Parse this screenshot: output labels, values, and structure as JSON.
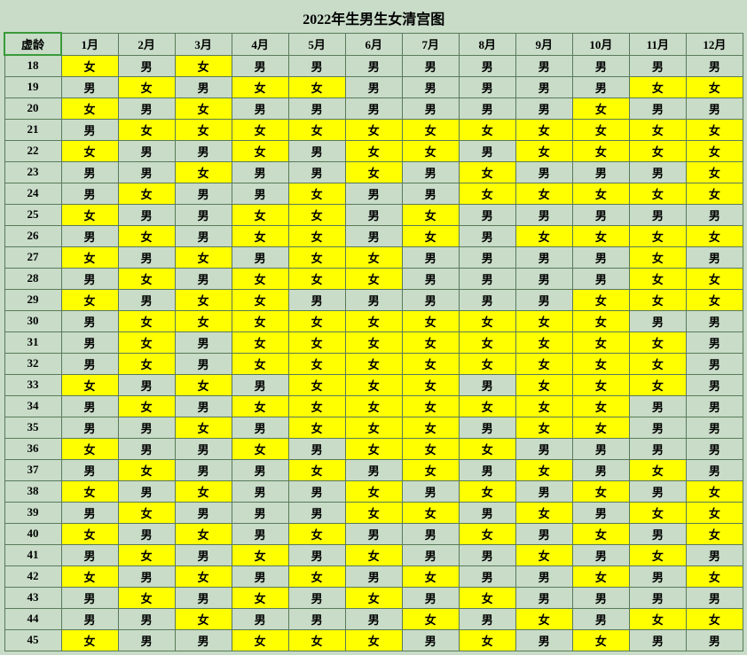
{
  "title": "2022年生男生女清宫图",
  "ageHeader": "虚龄",
  "months": [
    "1月",
    "2月",
    "3月",
    "4月",
    "5月",
    "6月",
    "7月",
    "8月",
    "9月",
    "10月",
    "11月",
    "12月"
  ],
  "labels": {
    "f": "女",
    "m": "男"
  },
  "colors": {
    "background": "#c8dcc8",
    "female": "#ffff00",
    "male": "#c8dcc8",
    "border": "#5a7a5a",
    "selectedBorder": "#3a9a3a"
  },
  "rows": [
    {
      "age": 18,
      "v": [
        "f",
        "m",
        "f",
        "m",
        "m",
        "m",
        "m",
        "m",
        "m",
        "m",
        "m",
        "m"
      ]
    },
    {
      "age": 19,
      "v": [
        "m",
        "f",
        "m",
        "f",
        "f",
        "m",
        "m",
        "m",
        "m",
        "m",
        "f",
        "f"
      ]
    },
    {
      "age": 20,
      "v": [
        "f",
        "m",
        "f",
        "m",
        "m",
        "m",
        "m",
        "m",
        "m",
        "f",
        "m",
        "m"
      ]
    },
    {
      "age": 21,
      "v": [
        "m",
        "f",
        "f",
        "f",
        "f",
        "f",
        "f",
        "f",
        "f",
        "f",
        "f",
        "f"
      ]
    },
    {
      "age": 22,
      "v": [
        "f",
        "m",
        "m",
        "f",
        "m",
        "f",
        "f",
        "m",
        "f",
        "f",
        "f",
        "f"
      ]
    },
    {
      "age": 23,
      "v": [
        "m",
        "m",
        "f",
        "m",
        "m",
        "f",
        "m",
        "f",
        "m",
        "m",
        "m",
        "f"
      ]
    },
    {
      "age": 24,
      "v": [
        "m",
        "f",
        "m",
        "m",
        "f",
        "m",
        "m",
        "f",
        "f",
        "f",
        "f",
        "f"
      ]
    },
    {
      "age": 25,
      "v": [
        "f",
        "m",
        "m",
        "f",
        "f",
        "m",
        "f",
        "m",
        "m",
        "m",
        "m",
        "m"
      ]
    },
    {
      "age": 26,
      "v": [
        "m",
        "f",
        "m",
        "f",
        "f",
        "m",
        "f",
        "m",
        "f",
        "f",
        "f",
        "f"
      ]
    },
    {
      "age": 27,
      "v": [
        "f",
        "m",
        "f",
        "m",
        "f",
        "f",
        "m",
        "m",
        "m",
        "m",
        "f",
        "m"
      ]
    },
    {
      "age": 28,
      "v": [
        "m",
        "f",
        "m",
        "f",
        "f",
        "f",
        "m",
        "m",
        "m",
        "m",
        "f",
        "f"
      ]
    },
    {
      "age": 29,
      "v": [
        "f",
        "m",
        "f",
        "f",
        "m",
        "m",
        "m",
        "m",
        "m",
        "f",
        "f",
        "f"
      ]
    },
    {
      "age": 30,
      "v": [
        "m",
        "f",
        "f",
        "f",
        "f",
        "f",
        "f",
        "f",
        "f",
        "f",
        "m",
        "m"
      ]
    },
    {
      "age": 31,
      "v": [
        "m",
        "f",
        "m",
        "f",
        "f",
        "f",
        "f",
        "f",
        "f",
        "f",
        "f",
        "m"
      ]
    },
    {
      "age": 32,
      "v": [
        "m",
        "f",
        "m",
        "f",
        "f",
        "f",
        "f",
        "f",
        "f",
        "f",
        "f",
        "m"
      ]
    },
    {
      "age": 33,
      "v": [
        "f",
        "m",
        "f",
        "m",
        "f",
        "f",
        "f",
        "m",
        "f",
        "f",
        "f",
        "m"
      ]
    },
    {
      "age": 34,
      "v": [
        "m",
        "f",
        "m",
        "f",
        "f",
        "f",
        "f",
        "f",
        "f",
        "f",
        "m",
        "m"
      ]
    },
    {
      "age": 35,
      "v": [
        "m",
        "m",
        "f",
        "m",
        "f",
        "f",
        "f",
        "m",
        "f",
        "f",
        "m",
        "m"
      ]
    },
    {
      "age": 36,
      "v": [
        "f",
        "m",
        "m",
        "f",
        "m",
        "f",
        "f",
        "f",
        "m",
        "m",
        "m",
        "m"
      ]
    },
    {
      "age": 37,
      "v": [
        "m",
        "f",
        "m",
        "m",
        "f",
        "m",
        "f",
        "m",
        "f",
        "m",
        "f",
        "m"
      ]
    },
    {
      "age": 38,
      "v": [
        "f",
        "m",
        "f",
        "m",
        "m",
        "f",
        "m",
        "f",
        "m",
        "f",
        "m",
        "f"
      ]
    },
    {
      "age": 39,
      "v": [
        "m",
        "f",
        "m",
        "m",
        "m",
        "f",
        "f",
        "m",
        "f",
        "m",
        "f",
        "f"
      ]
    },
    {
      "age": 40,
      "v": [
        "f",
        "m",
        "f",
        "m",
        "f",
        "m",
        "m",
        "f",
        "m",
        "f",
        "m",
        "f"
      ]
    },
    {
      "age": 41,
      "v": [
        "m",
        "f",
        "m",
        "f",
        "m",
        "f",
        "m",
        "m",
        "f",
        "m",
        "f",
        "m"
      ]
    },
    {
      "age": 42,
      "v": [
        "f",
        "m",
        "f",
        "m",
        "f",
        "m",
        "f",
        "m",
        "m",
        "f",
        "m",
        "f"
      ]
    },
    {
      "age": 43,
      "v": [
        "m",
        "f",
        "m",
        "f",
        "m",
        "f",
        "m",
        "f",
        "m",
        "m",
        "m",
        "m"
      ]
    },
    {
      "age": 44,
      "v": [
        "m",
        "m",
        "f",
        "m",
        "m",
        "m",
        "f",
        "m",
        "f",
        "m",
        "f",
        "f"
      ]
    },
    {
      "age": 45,
      "v": [
        "f",
        "m",
        "m",
        "f",
        "f",
        "f",
        "m",
        "f",
        "m",
        "f",
        "m",
        "m"
      ]
    }
  ]
}
